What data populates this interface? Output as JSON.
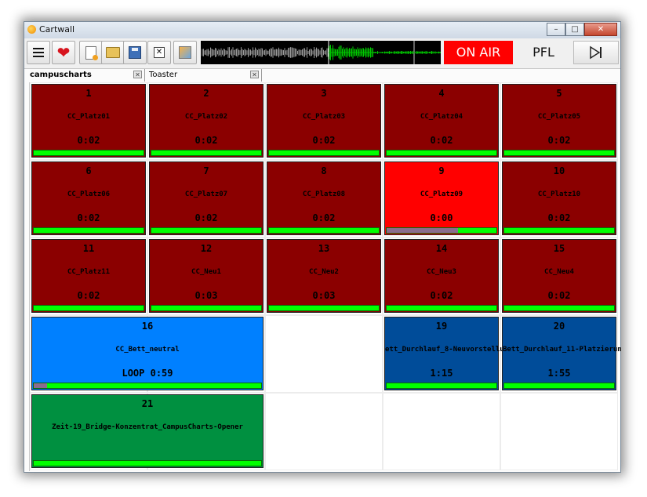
{
  "window": {
    "title": "Cartwall"
  },
  "toolbar": {
    "buttons": [
      {
        "icon": "menu-icon"
      },
      {
        "icon": "heart-icon"
      },
      {
        "icon": "new-file-icon"
      },
      {
        "icon": "open-folder-icon"
      },
      {
        "icon": "save-icon"
      },
      {
        "icon": "close-file-icon"
      },
      {
        "icon": "settings-icon"
      }
    ],
    "on_air_label": "ON AIR",
    "on_air_color": "#ff0000",
    "pfl_label": "PFL"
  },
  "tabs": [
    {
      "label": "campuscharts",
      "active": true
    },
    {
      "label": "Toaster",
      "active": false
    }
  ],
  "colors": {
    "dark_red": "#8b0000",
    "bright_red": "#ff0000",
    "light_blue": "#0080ff",
    "dark_blue": "#004c99",
    "green": "#009040",
    "progress_green": "#00ff00"
  },
  "carts": [
    {
      "num": "1",
      "name": "CC_Platz01",
      "time": "0:02",
      "color": "#8b0000",
      "col": 0,
      "row": 0,
      "span": 1,
      "progress": 0
    },
    {
      "num": "2",
      "name": "CC_Platz02",
      "time": "0:02",
      "color": "#8b0000",
      "col": 1,
      "row": 0,
      "span": 1,
      "progress": 0
    },
    {
      "num": "3",
      "name": "CC_Platz03",
      "time": "0:02",
      "color": "#8b0000",
      "col": 2,
      "row": 0,
      "span": 1,
      "progress": 0
    },
    {
      "num": "4",
      "name": "CC_Platz04",
      "time": "0:02",
      "color": "#8b0000",
      "col": 3,
      "row": 0,
      "span": 1,
      "progress": 0
    },
    {
      "num": "5",
      "name": "CC_Platz05",
      "time": "0:02",
      "color": "#8b0000",
      "col": 4,
      "row": 0,
      "span": 1,
      "progress": 0
    },
    {
      "num": "6",
      "name": "CC_Platz06",
      "time": "0:02",
      "color": "#8b0000",
      "col": 0,
      "row": 1,
      "span": 1,
      "progress": 0
    },
    {
      "num": "7",
      "name": "CC_Platz07",
      "time": "0:02",
      "color": "#8b0000",
      "col": 1,
      "row": 1,
      "span": 1,
      "progress": 0
    },
    {
      "num": "8",
      "name": "CC_Platz08",
      "time": "0:02",
      "color": "#8b0000",
      "col": 2,
      "row": 1,
      "span": 1,
      "progress": 0
    },
    {
      "num": "9",
      "name": "CC_Platz09",
      "time": "0:00",
      "color": "#ff0000",
      "col": 3,
      "row": 1,
      "span": 1,
      "progress": 0.65
    },
    {
      "num": "10",
      "name": "CC_Platz10",
      "time": "0:02",
      "color": "#8b0000",
      "col": 4,
      "row": 1,
      "span": 1,
      "progress": 0
    },
    {
      "num": "11",
      "name": "CC_Platz11",
      "time": "0:02",
      "color": "#8b0000",
      "col": 0,
      "row": 2,
      "span": 1,
      "progress": 0
    },
    {
      "num": "12",
      "name": "CC_Neu1",
      "time": "0:03",
      "color": "#8b0000",
      "col": 1,
      "row": 2,
      "span": 1,
      "progress": 0
    },
    {
      "num": "13",
      "name": "CC_Neu2",
      "time": "0:03",
      "color": "#8b0000",
      "col": 2,
      "row": 2,
      "span": 1,
      "progress": 0
    },
    {
      "num": "14",
      "name": "CC_Neu3",
      "time": "0:02",
      "color": "#8b0000",
      "col": 3,
      "row": 2,
      "span": 1,
      "progress": 0
    },
    {
      "num": "15",
      "name": "CC_Neu4",
      "time": "0:02",
      "color": "#8b0000",
      "col": 4,
      "row": 2,
      "span": 1,
      "progress": 0
    },
    {
      "num": "16",
      "name": "CC_Bett_neutral",
      "time": "LOOP 0:59",
      "color": "#0080ff",
      "col": 0,
      "row": 3,
      "span": 2,
      "progress": 0.06
    },
    {
      "num": "19",
      "name": "ett_Durchlauf_8-Neuvorstellu",
      "time": "1:15",
      "color": "#004c99",
      "col": 3,
      "row": 3,
      "span": 1,
      "progress": 0
    },
    {
      "num": "20",
      "name": "Bett_Durchlauf_11-Platzierun",
      "time": "1:55",
      "color": "#004c99",
      "col": 4,
      "row": 3,
      "span": 1,
      "progress": 0
    },
    {
      "num": "21",
      "name": "Zeit-19_Bridge-Konzentrat_CampusCharts-Opener",
      "time": "",
      "color": "#009040",
      "col": 0,
      "row": 4,
      "span": 2,
      "progress": 0
    }
  ]
}
